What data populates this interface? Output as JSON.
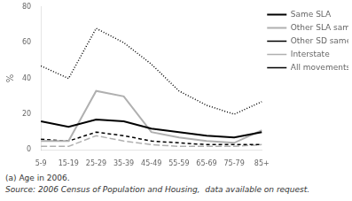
{
  "chart_data": {
    "type": "line",
    "categories": [
      "5-9",
      "15-19",
      "25-29",
      "35-39",
      "45-49",
      "55-59",
      "65-69",
      "75-79",
      "85+"
    ],
    "series": [
      {
        "name": "Same SLA",
        "color": "#000000",
        "line_style": "solid",
        "values": [
          16,
          13,
          17,
          16,
          12,
          10,
          8,
          7,
          10
        ]
      },
      {
        "name": "Other SLA same SD",
        "color": "#b0b0b0",
        "line_style": "solid",
        "values": [
          5,
          5,
          33,
          30,
          10,
          7,
          5,
          4,
          11
        ]
      },
      {
        "name": "Other SD same state",
        "color": "#000000",
        "line_style": "dashed",
        "values": [
          6,
          5,
          10,
          8,
          5,
          4,
          3,
          3,
          3
        ]
      },
      {
        "name": "Interstate",
        "color": "#b0b0b0",
        "line_style": "dashed",
        "values": [
          2,
          2,
          8,
          5,
          3,
          2,
          2,
          2,
          3
        ]
      },
      {
        "name": "All movements",
        "color": "#000000",
        "line_style": "dotted",
        "values": [
          47,
          40,
          68,
          60,
          48,
          33,
          25,
          20,
          27
        ]
      }
    ],
    "y_label": "%",
    "ylim": [
      0,
      80
    ],
    "yticks": [
      0,
      20,
      40,
      60,
      80
    ],
    "grid": false,
    "legend": "right",
    "annotations": [
      "(a) Age in 2006.",
      "Source: 2006 Census of Population and Housing,  data available on request."
    ]
  }
}
